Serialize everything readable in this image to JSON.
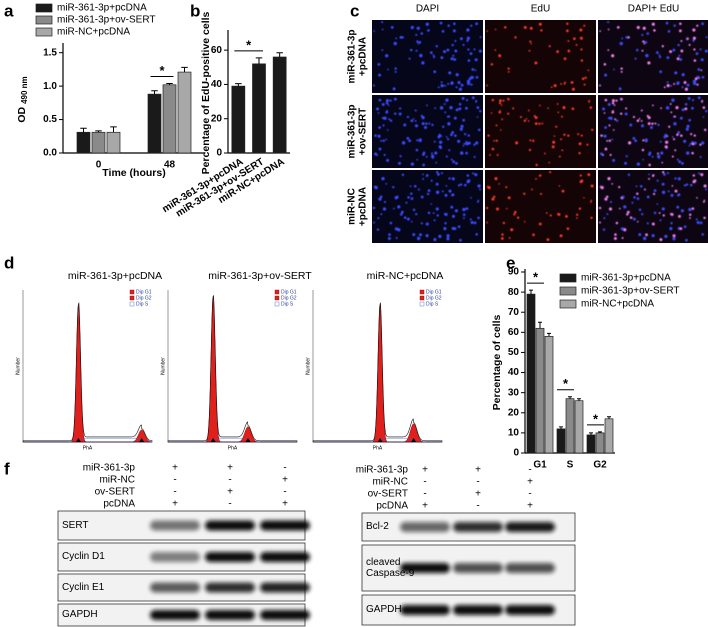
{
  "chart_data": [
    {
      "panel": "a",
      "type": "bar",
      "y_label": "OD",
      "y_label_sub": "490 nm",
      "x_label": "Time (hours)",
      "categories": [
        "0",
        "48"
      ],
      "series": [
        {
          "name": "miR-361-3p+pcDNA",
          "color": "#1a1a1a",
          "values": [
            0.31,
            0.88
          ],
          "errors": [
            0.06,
            0.05
          ]
        },
        {
          "name": "miR-361-3p+ov-SERT",
          "color": "#8a8a8a",
          "values": [
            0.31,
            1.02
          ],
          "errors": [
            0.02,
            0.02
          ]
        },
        {
          "name": "miR-NC+pcDNA",
          "color": "#a8a8a8",
          "values": [
            0.31,
            1.21
          ],
          "errors": [
            0.08,
            0.07
          ]
        }
      ],
      "ylim": [
        0,
        1.6
      ],
      "yticks": [
        {
          "value": 0,
          "label": "0.0"
        },
        0.5,
        {
          "value": 1,
          "label": "1.0"
        },
        1.5
      ],
      "annotations": [
        "*"
      ]
    },
    {
      "panel": "b",
      "type": "bar",
      "y_label": "Percentage of EdU-positive cells",
      "categories": [
        "miR-361-3p+pcDNA",
        "miR-361-3p+ov-SERT",
        "miR-NC+pcDNA"
      ],
      "values": [
        39,
        52,
        56
      ],
      "errors": [
        1.5,
        3.5,
        2.5
      ],
      "color": "#1a1a1a",
      "ylim": [
        0,
        70
      ],
      "yticks": [
        0,
        20,
        40,
        60
      ],
      "annotations": [
        "*"
      ]
    },
    {
      "panel": "e",
      "type": "bar",
      "y_label": "Percentage of cells",
      "categories": [
        "G1",
        "S",
        "G2"
      ],
      "series": [
        {
          "name": "miR-361-3p+pcDNA",
          "color": "#1a1a1a",
          "values": [
            79,
            12,
            9
          ],
          "errors": [
            2,
            1,
            1
          ]
        },
        {
          "name": "miR-361-3p+ov-SERT",
          "color": "#8a8a8a",
          "values": [
            62,
            27,
            10
          ],
          "errors": [
            3,
            1,
            0.5
          ]
        },
        {
          "name": "miR-NC+pcDNA",
          "color": "#a8a8a8",
          "values": [
            58,
            26,
            17
          ],
          "errors": [
            1.5,
            1,
            1
          ]
        }
      ],
      "ylim": [
        0,
        90
      ],
      "yticks": [
        0,
        10,
        20,
        30,
        40,
        50,
        60,
        70,
        80,
        90
      ],
      "annotations": [
        "*",
        "*",
        "*"
      ]
    }
  ],
  "panel_c": {
    "panel": "c",
    "columns": [
      "DAPI",
      "EdU",
      "DAPI+ EdU"
    ],
    "rows": [
      [
        "miR-361-3p",
        "+pcDNA"
      ],
      [
        "miR-361-3p",
        "+ov-SERT"
      ],
      [
        "miR-NC",
        "+pcDNA"
      ]
    ]
  },
  "panel_d": {
    "panel": "d",
    "titles": [
      "miR-361-3p+pcDNA",
      "miR-361-3p+ov-SERT",
      "miR-NC+pcDNA"
    ],
    "legend": [
      "Dip G1",
      "Dip G2",
      "Dip S"
    ],
    "x_label": "PhA",
    "y_label": "Number"
  },
  "panel_f": {
    "panel": "f",
    "blots": [
      {
        "treatments": [
          {
            "name": "miR-361-3p",
            "signs": [
              "+",
              "+",
              "-"
            ]
          },
          {
            "name": "miR-NC",
            "signs": [
              "-",
              "-",
              "+"
            ]
          },
          {
            "name": "ov-SERT",
            "signs": [
              "-",
              "+",
              "-"
            ]
          },
          {
            "name": "pcDNA",
            "signs": [
              "+",
              "-",
              "+"
            ]
          }
        ],
        "proteins": [
          "SERT",
          "Cyclin D1",
          "Cyclin E1",
          "GAPDH"
        ]
      },
      {
        "treatments": [
          {
            "name": "miR-361-3p",
            "signs": [
              "+",
              "+",
              "-"
            ]
          },
          {
            "name": "miR-NC",
            "signs": [
              "-",
              "-",
              "+"
            ]
          },
          {
            "name": "ov-SERT",
            "signs": [
              "-",
              "+",
              "-"
            ]
          },
          {
            "name": "pcDNA",
            "signs": [
              "+",
              "-",
              "+"
            ]
          }
        ],
        "proteins": [
          "Bcl-2",
          "cleaved Caspase-9",
          "GAPDH"
        ]
      }
    ]
  }
}
